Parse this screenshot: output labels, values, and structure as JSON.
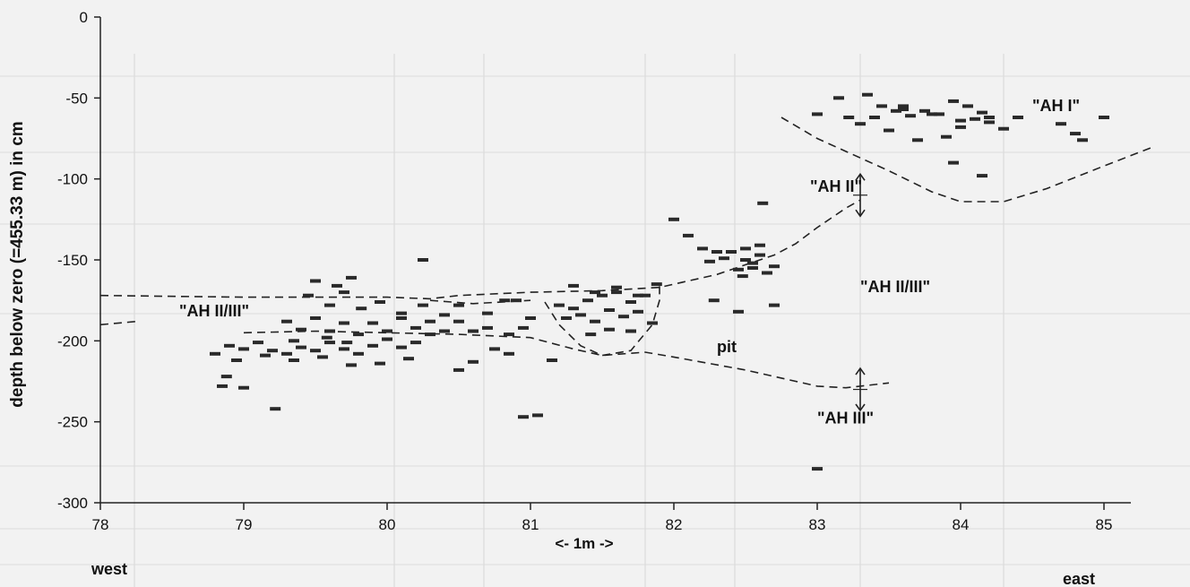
{
  "chart_data": {
    "type": "scatter",
    "ylabel": "depth below zero (=455.33 m) in cm",
    "xlim": [
      78,
      85
    ],
    "ylim": [
      -300,
      0
    ],
    "x_ticks": [
      "78",
      "79",
      "80",
      "81",
      "82",
      "83",
      "84",
      "85"
    ],
    "y_ticks": [
      "0",
      "-50",
      "-100",
      "-150",
      "-200",
      "-250",
      "-300"
    ],
    "x_end_labels": {
      "left": "west",
      "right": "east"
    },
    "scale_note": "<- 1m ->",
    "annotations": [
      {
        "text": "\"AH I\"",
        "x": 84.5,
        "y": -58
      },
      {
        "text": "\"AH II\"",
        "x": 82.95,
        "y": -108
      },
      {
        "text": "\"AH II/III\"",
        "x": 83.3,
        "y": -170
      },
      {
        "text": "\"AH II/III\"",
        "x": 78.55,
        "y": -185
      },
      {
        "text": "pit",
        "x": 82.3,
        "y": -207
      },
      {
        "text": "\"AH III\"",
        "x": 83.0,
        "y": -251
      }
    ],
    "series": [
      {
        "values": [
          [
            79.22,
            -242
          ],
          [
            78.85,
            -228
          ],
          [
            78.88,
            -222
          ],
          [
            79.0,
            -229
          ],
          [
            78.8,
            -208
          ],
          [
            78.9,
            -203
          ],
          [
            79.0,
            -205
          ],
          [
            79.1,
            -201
          ],
          [
            79.2,
            -206
          ],
          [
            79.3,
            -208
          ],
          [
            79.4,
            -204
          ],
          [
            79.5,
            -206
          ],
          [
            79.6,
            -201
          ],
          [
            79.7,
            -205
          ],
          [
            79.8,
            -208
          ],
          [
            79.9,
            -203
          ],
          [
            80.0,
            -199
          ],
          [
            80.1,
            -204
          ],
          [
            80.2,
            -201
          ],
          [
            80.3,
            -196
          ],
          [
            78.95,
            -212
          ],
          [
            79.15,
            -209
          ],
          [
            79.35,
            -212
          ],
          [
            79.55,
            -210
          ],
          [
            79.75,
            -215
          ],
          [
            79.95,
            -214
          ],
          [
            80.15,
            -211
          ],
          [
            79.3,
            -188
          ],
          [
            79.4,
            -193
          ],
          [
            79.5,
            -186
          ],
          [
            79.6,
            -194
          ],
          [
            79.7,
            -189
          ],
          [
            79.8,
            -196
          ],
          [
            79.9,
            -189
          ],
          [
            80.0,
            -194
          ],
          [
            80.1,
            -186
          ],
          [
            80.2,
            -192
          ],
          [
            80.3,
            -188
          ],
          [
            80.4,
            -194
          ],
          [
            80.5,
            -188
          ],
          [
            80.6,
            -194
          ],
          [
            79.45,
            -172
          ],
          [
            79.6,
            -178
          ],
          [
            79.7,
            -170
          ],
          [
            79.82,
            -180
          ],
          [
            79.95,
            -176
          ],
          [
            80.1,
            -183
          ],
          [
            80.25,
            -178
          ],
          [
            80.4,
            -184
          ],
          [
            80.5,
            -178
          ],
          [
            79.5,
            -163
          ],
          [
            79.65,
            -166
          ],
          [
            79.75,
            -161
          ],
          [
            80.25,
            -150
          ],
          [
            80.7,
            -192
          ],
          [
            80.75,
            -205
          ],
          [
            80.85,
            -208
          ],
          [
            80.5,
            -218
          ],
          [
            80.6,
            -213
          ],
          [
            79.35,
            -200
          ],
          [
            79.58,
            -198
          ],
          [
            79.72,
            -201
          ],
          [
            80.85,
            -196
          ],
          [
            80.7,
            -183
          ],
          [
            80.9,
            -175
          ],
          [
            81.0,
            -186
          ],
          [
            81.15,
            -212
          ],
          [
            80.82,
            -175
          ],
          [
            80.95,
            -192
          ],
          [
            80.95,
            -247
          ],
          [
            81.05,
            -246
          ],
          [
            81.2,
            -178
          ],
          [
            81.3,
            -180
          ],
          [
            81.4,
            -175
          ],
          [
            81.5,
            -172
          ],
          [
            81.6,
            -170
          ],
          [
            81.7,
            -176
          ],
          [
            81.8,
            -172
          ],
          [
            81.25,
            -186
          ],
          [
            81.35,
            -184
          ],
          [
            81.45,
            -188
          ],
          [
            81.55,
            -181
          ],
          [
            81.65,
            -185
          ],
          [
            81.75,
            -182
          ],
          [
            81.3,
            -166
          ],
          [
            81.45,
            -170
          ],
          [
            81.6,
            -167
          ],
          [
            81.75,
            -172
          ],
          [
            81.42,
            -196
          ],
          [
            81.55,
            -193
          ],
          [
            81.7,
            -194
          ],
          [
            81.85,
            -189
          ],
          [
            81.88,
            -165
          ],
          [
            82.0,
            -125
          ],
          [
            82.1,
            -135
          ],
          [
            82.2,
            -143
          ],
          [
            82.25,
            -151
          ],
          [
            82.35,
            -149
          ],
          [
            82.45,
            -156
          ],
          [
            82.55,
            -152
          ],
          [
            82.6,
            -147
          ],
          [
            82.65,
            -158
          ],
          [
            82.3,
            -145
          ],
          [
            82.4,
            -145
          ],
          [
            82.7,
            -154
          ],
          [
            82.5,
            -143
          ],
          [
            82.55,
            -155
          ],
          [
            82.5,
            -150
          ],
          [
            82.6,
            -141
          ],
          [
            82.48,
            -160
          ],
          [
            82.62,
            -115
          ],
          [
            82.28,
            -175
          ],
          [
            82.45,
            -182
          ],
          [
            82.7,
            -178
          ],
          [
            83.0,
            -60
          ],
          [
            83.15,
            -50
          ],
          [
            83.22,
            -62
          ],
          [
            83.35,
            -48
          ],
          [
            83.45,
            -55
          ],
          [
            83.55,
            -58
          ],
          [
            83.65,
            -61
          ],
          [
            83.75,
            -58
          ],
          [
            83.85,
            -60
          ],
          [
            83.95,
            -52
          ],
          [
            84.05,
            -55
          ],
          [
            84.15,
            -59
          ],
          [
            83.3,
            -66
          ],
          [
            83.5,
            -70
          ],
          [
            83.7,
            -76
          ],
          [
            83.9,
            -74
          ],
          [
            84.0,
            -68
          ],
          [
            84.1,
            -63
          ],
          [
            84.2,
            -62
          ],
          [
            84.3,
            -69
          ],
          [
            83.6,
            -57
          ],
          [
            83.8,
            -60
          ],
          [
            84.0,
            -64
          ],
          [
            84.2,
            -65
          ],
          [
            84.4,
            -62
          ],
          [
            83.95,
            -90
          ],
          [
            84.15,
            -98
          ],
          [
            84.7,
            -66
          ],
          [
            84.8,
            -72
          ],
          [
            84.85,
            -76
          ],
          [
            85.0,
            -62
          ],
          [
            83.4,
            -62
          ],
          [
            83.6,
            -55
          ],
          [
            83.0,
            -279
          ]
        ]
      }
    ],
    "boundary_lines": [
      [
        [
          78.0,
          -172
        ],
        [
          79.0,
          -173
        ],
        [
          80.0,
          -173
        ],
        [
          80.3,
          -174
        ],
        [
          80.5,
          -172
        ],
        [
          81.0,
          -170
        ],
        [
          81.5,
          -169
        ],
        [
          81.9,
          -167
        ],
        [
          82.3,
          -159
        ],
        [
          82.6,
          -150
        ],
        [
          82.7,
          -147
        ],
        [
          82.85,
          -140
        ],
        [
          83.0,
          -130
        ],
        [
          83.2,
          -118
        ],
        [
          83.3,
          -113
        ]
      ],
      [
        [
          80.3,
          -175
        ],
        [
          80.6,
          -177
        ],
        [
          81.0,
          -175
        ]
      ],
      [
        [
          78.0,
          -190
        ],
        [
          78.25,
          -188
        ]
      ],
      [
        [
          79.0,
          -195
        ],
        [
          79.5,
          -194
        ],
        [
          80.0,
          -195
        ],
        [
          80.5,
          -196
        ],
        [
          81.0,
          -198
        ],
        [
          81.3,
          -205
        ],
        [
          81.5,
          -209
        ],
        [
          81.8,
          -207
        ],
        [
          82.0,
          -210
        ],
        [
          82.5,
          -218
        ],
        [
          83.0,
          -228
        ],
        [
          83.2,
          -229
        ],
        [
          83.5,
          -226
        ]
      ],
      [
        [
          81.1,
          -176
        ],
        [
          81.2,
          -190
        ],
        [
          81.35,
          -203
        ],
        [
          81.5,
          -209
        ],
        [
          81.7,
          -206
        ],
        [
          81.85,
          -190
        ],
        [
          81.9,
          -175
        ],
        [
          81.9,
          -163
        ]
      ],
      [
        [
          82.75,
          -62
        ],
        [
          83.0,
          -75
        ],
        [
          83.5,
          -95
        ],
        [
          83.8,
          -108
        ],
        [
          84.0,
          -114
        ],
        [
          84.3,
          -114
        ],
        [
          84.6,
          -106
        ],
        [
          85.0,
          -92
        ],
        [
          85.35,
          -80
        ]
      ]
    ],
    "arrows": [
      {
        "x": 83.3,
        "y1": -97,
        "y2": -123
      },
      {
        "x": 83.3,
        "y1": -217,
        "y2": -243
      }
    ]
  }
}
